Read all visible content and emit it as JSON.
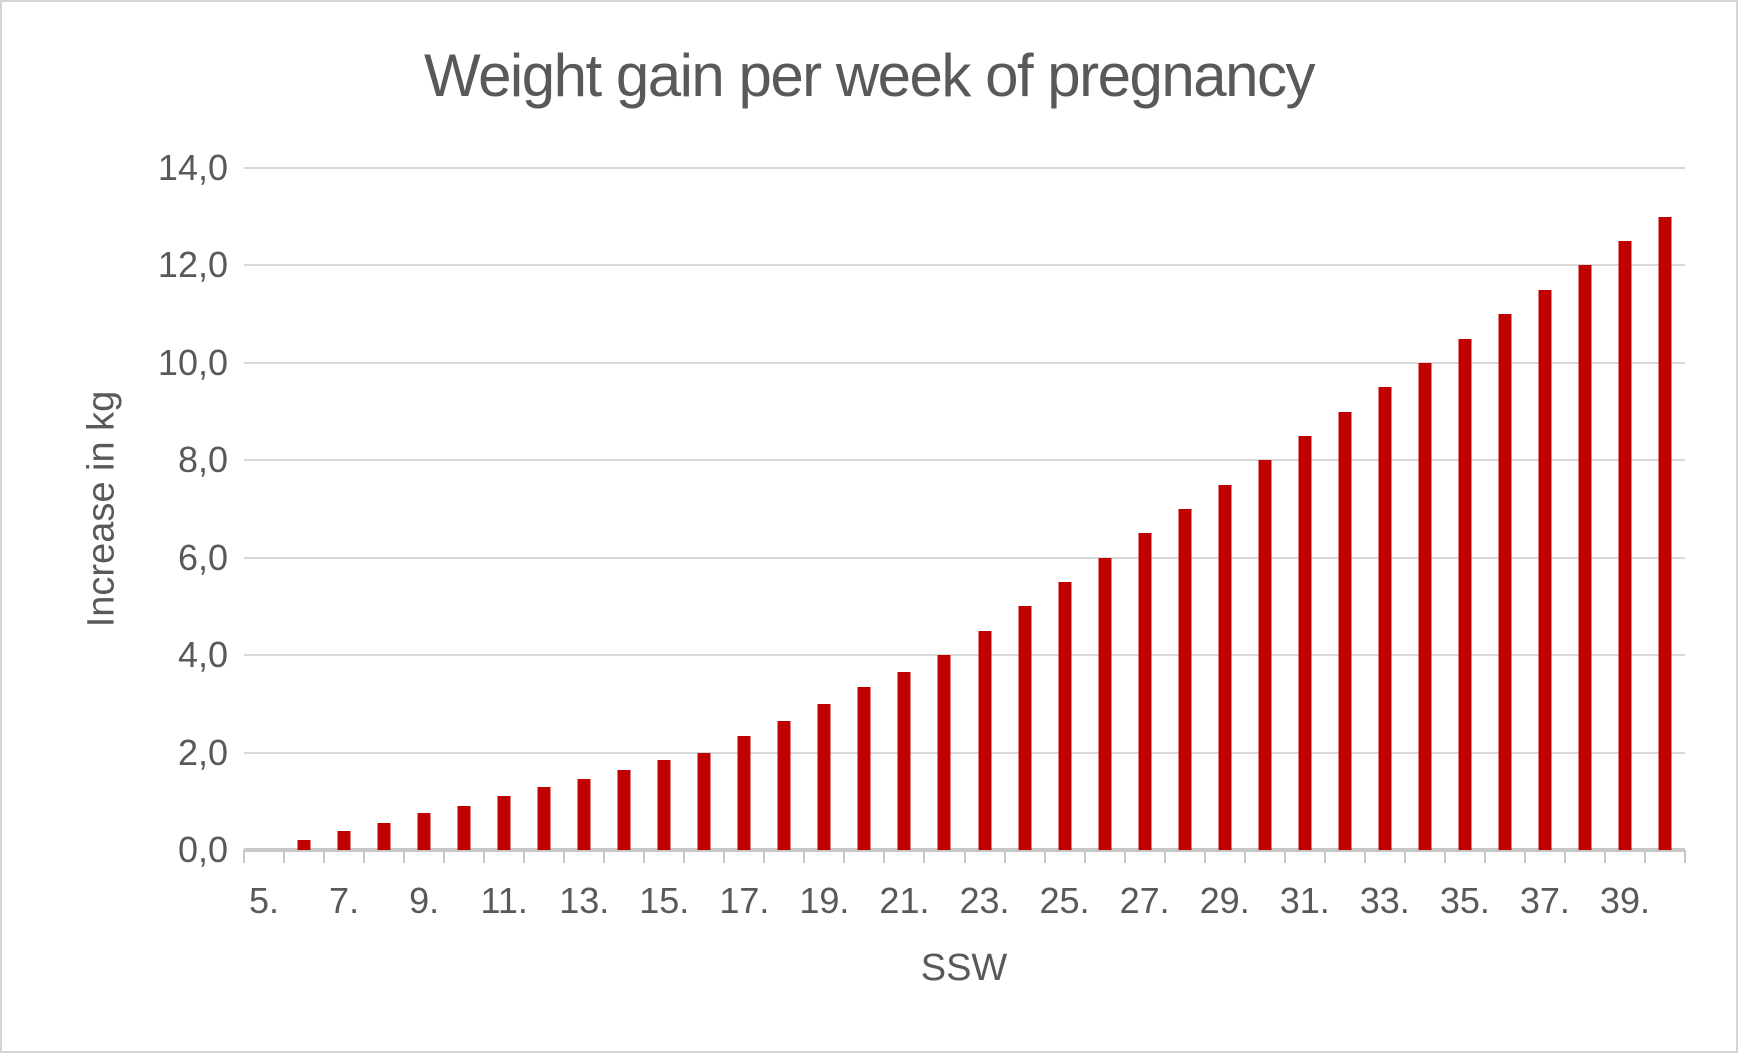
{
  "page": {
    "background": "#ffffff",
    "frame_border_color": "#d4d4d4"
  },
  "chart_data": {
    "type": "bar",
    "title": "Weight gain per week of pregnancy",
    "xlabel": "SSW",
    "ylabel": "Increase in kg",
    "ylim": [
      0,
      14
    ],
    "y_tick_step": 2,
    "y_tick_labels": [
      "0,0",
      "2,0",
      "4,0",
      "6,0",
      "8,0",
      "10,0",
      "12,0",
      "14,0"
    ],
    "x_axis_weeks_range": [
      5,
      40
    ],
    "x_tick_labels": [
      "5.",
      "7.",
      "9.",
      "11.",
      "13.",
      "15.",
      "17.",
      "19.",
      "21.",
      "23.",
      "25.",
      "27.",
      "29.",
      "31.",
      "33.",
      "35.",
      "37.",
      "39."
    ],
    "categories": [
      6,
      7,
      8,
      9,
      10,
      11,
      12,
      13,
      14,
      15,
      16,
      17,
      18,
      19,
      20,
      21,
      22,
      23,
      24,
      25,
      26,
      27,
      28,
      29,
      30,
      31,
      32,
      33,
      34,
      35,
      36,
      37,
      38,
      39,
      40
    ],
    "values": [
      0.2,
      0.4,
      0.55,
      0.75,
      0.9,
      1.1,
      1.3,
      1.45,
      1.65,
      1.85,
      2.0,
      2.35,
      2.65,
      3.0,
      3.35,
      3.65,
      4.0,
      4.5,
      5.0,
      5.5,
      6.0,
      6.5,
      7.0,
      7.5,
      8.0,
      8.5,
      9.0,
      9.5,
      10.0,
      10.5,
      11.0,
      11.5,
      12.0,
      12.5,
      13.0
    ],
    "grid": true,
    "legend": false,
    "bar_color": "#c00000",
    "text_color": "#595959",
    "gridline_color": "#d9d9d9",
    "axis_line_color": "#c8c8c8"
  }
}
